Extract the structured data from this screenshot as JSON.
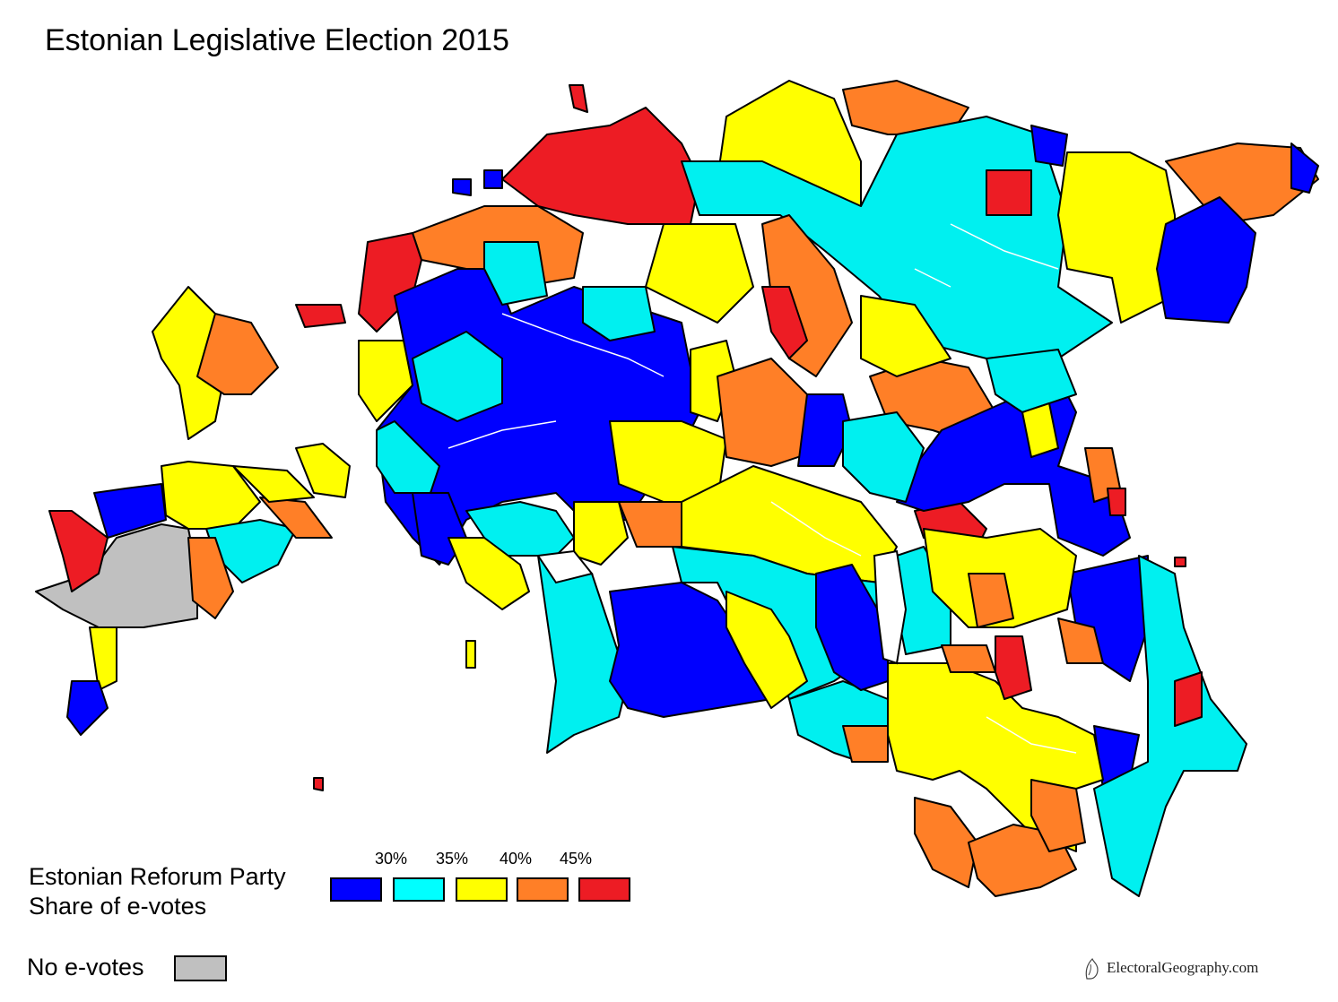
{
  "title": "Estonian Legislative Election 2015",
  "legend": {
    "title_line1": "Estonian Reforum Party",
    "title_line2": "Share of e-votes",
    "thresholds": [
      "30%",
      "35%",
      "40%",
      "45%"
    ],
    "bins": [
      {
        "color": "#0000ff"
      },
      {
        "color": "#00ffff"
      },
      {
        "color": "#ffff00"
      },
      {
        "color": "#ff7f27"
      },
      {
        "color": "#ed1c24"
      }
    ],
    "no_data_label": "No e-votes",
    "no_data_color": "#c0c0c0"
  },
  "credit": "ElectoralGeography.com",
  "colors": {
    "blue": "#0000ff",
    "cyan": "#00f0f0",
    "yellow": "#ffff00",
    "orange": "#ff7f27",
    "red": "#ed1c24",
    "gray": "#c0c0c0"
  }
}
